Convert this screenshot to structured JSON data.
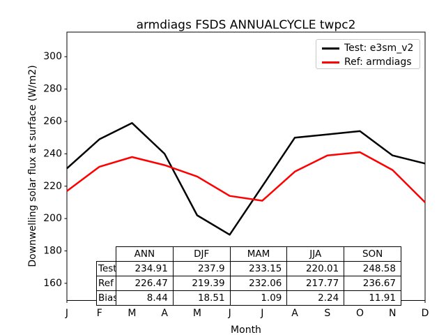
{
  "chart_data": {
    "type": "line",
    "title": "armdiags FSDS ANNUALCYCLE twpc2",
    "xlabel": "Month",
    "ylabel": "Downwelling solar flux at surface (W/m2)",
    "x_ticklabels": [
      "J",
      "F",
      "M",
      "A",
      "M",
      "J",
      "J",
      "A",
      "S",
      "O",
      "N",
      "D"
    ],
    "y_ticks": [
      160,
      180,
      200,
      220,
      240,
      260,
      280,
      300
    ],
    "ylim": [
      149.4,
      315.2
    ],
    "grid": false,
    "legend": {
      "position": "upper right"
    },
    "series": [
      {
        "name": "Test: e3sm_v2",
        "color": "#000000",
        "values": [
          231,
          249,
          259,
          240,
          202,
          190,
          220,
          250,
          252,
          254,
          239,
          234
        ]
      },
      {
        "name": "Ref: armdiags",
        "color": "#ff0000",
        "values": [
          217,
          232,
          238,
          233,
          226,
          214,
          211,
          229,
          239,
          241,
          230,
          210
        ]
      }
    ],
    "summary_table": {
      "col_headers": [
        "ANN",
        "DJF",
        "MAM",
        "JJA",
        "SON"
      ],
      "row_headers": [
        "Test",
        "Ref",
        "Bias"
      ],
      "rows": [
        [
          "234.91",
          "237.9",
          "233.15",
          "220.01",
          "248.58"
        ],
        [
          "226.47",
          "219.39",
          "232.06",
          "217.77",
          "236.67"
        ],
        [
          "8.44",
          "18.51",
          "1.09",
          "2.24",
          "11.91"
        ]
      ]
    }
  }
}
